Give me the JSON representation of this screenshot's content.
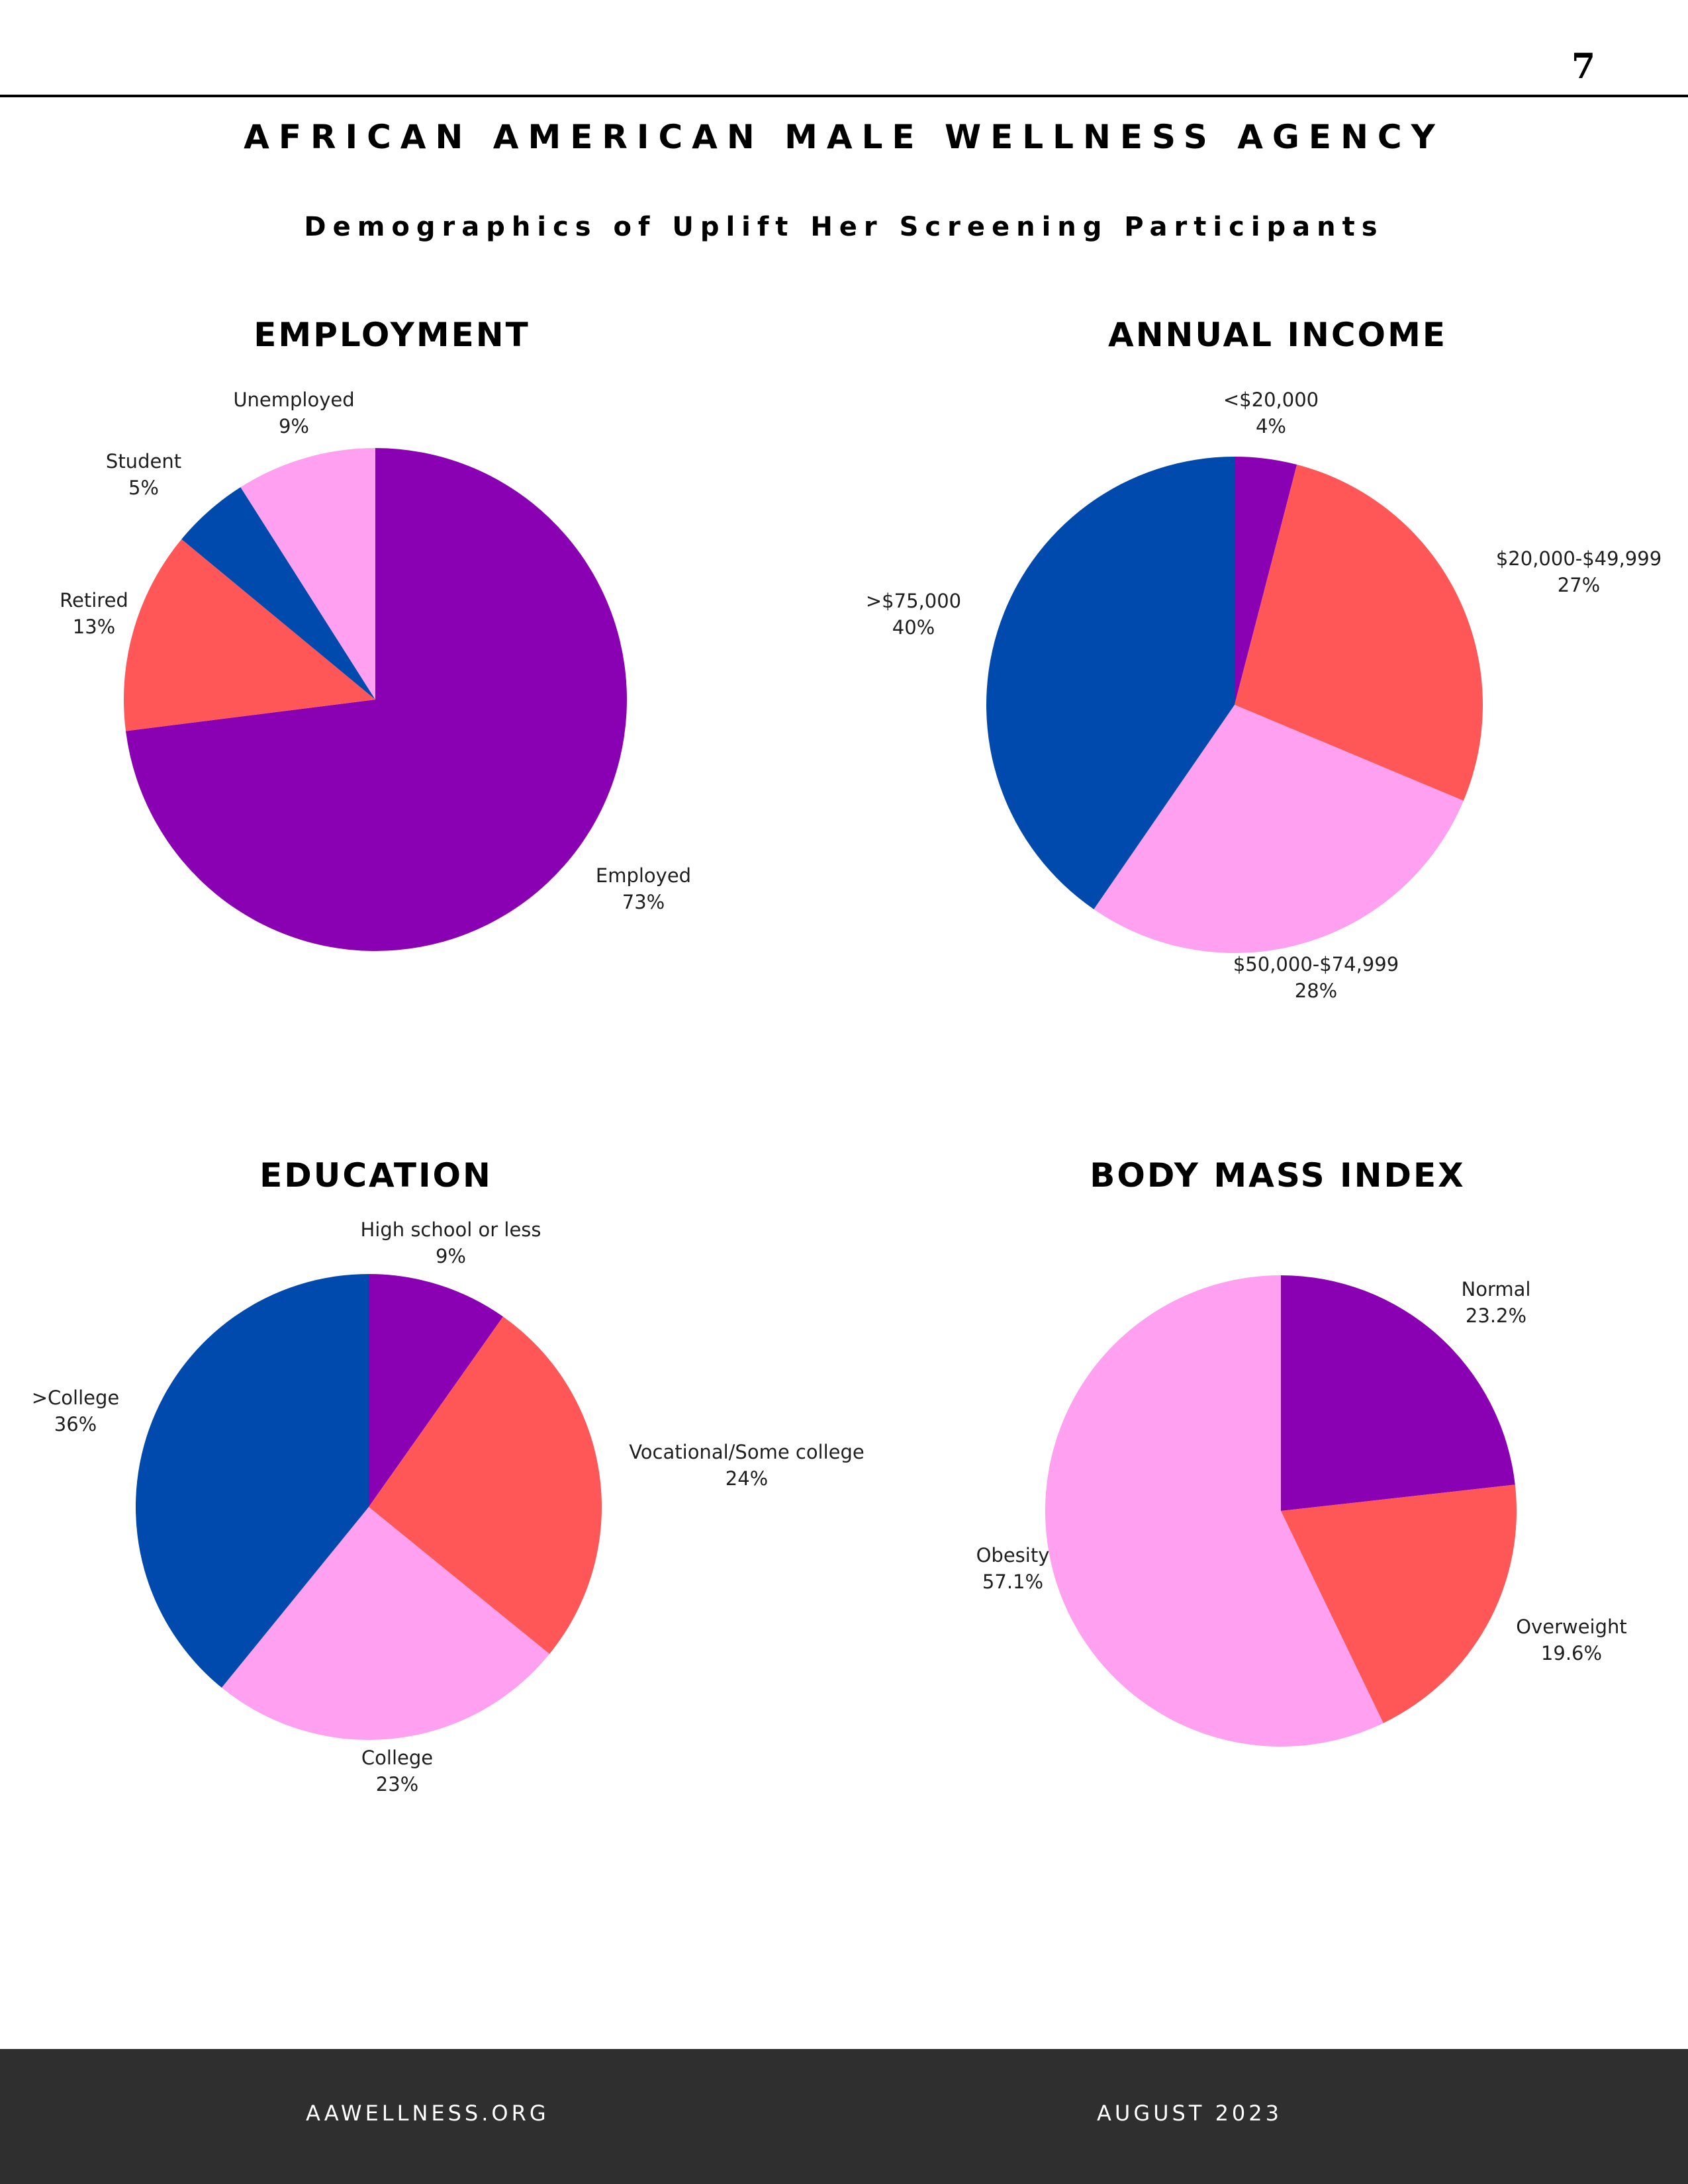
{
  "page": {
    "number": "7",
    "agency_title": "AFRICAN AMERICAN MALE WELLNESS AGENCY",
    "subtitle": "Demographics of Uplift Her Screening Participants"
  },
  "footer": {
    "website": "AAWELLNESS.ORG",
    "date": "AUGUST 2023"
  },
  "colors": {
    "purple": "#8a00b3",
    "coral": "#ff5757",
    "pink": "#ffa0f0",
    "blue": "#004aad"
  },
  "chart_data": [
    {
      "id": "employment",
      "type": "pie",
      "title": "EMPLOYMENT",
      "slices": [
        {
          "label": "Employed",
          "pct": "73%",
          "value": 73,
          "color": "#8a00b3"
        },
        {
          "label": "Retired",
          "pct": "13%",
          "value": 13,
          "color": "#ff5757"
        },
        {
          "label": "Student",
          "pct": "5%",
          "value": 5,
          "color": "#004aad"
        },
        {
          "label": "Unemployed",
          "pct": "9%",
          "value": 9,
          "color": "#ffa0f0"
        }
      ]
    },
    {
      "id": "annual-income",
      "type": "pie",
      "title": "ANNUAL INCOME",
      "slices": [
        {
          "label": "<$20,000",
          "pct": "4%",
          "value": 4,
          "color": "#8a00b3"
        },
        {
          "label": "$20,000-$49,999",
          "pct": "27%",
          "value": 27,
          "color": "#ff5757"
        },
        {
          "label": "$50,000-$74,999",
          "pct": "28%",
          "value": 28,
          "color": "#ffa0f0"
        },
        {
          "label": ">$75,000",
          "pct": "40%",
          "value": 40,
          "color": "#004aad"
        }
      ]
    },
    {
      "id": "education",
      "type": "pie",
      "title": "EDUCATION",
      "slices": [
        {
          "label": "High school or less",
          "pct": "9%",
          "value": 9,
          "color": "#8a00b3"
        },
        {
          "label": "Vocational/Some college",
          "pct": "24%",
          "value": 24,
          "color": "#ff5757"
        },
        {
          "label": "College",
          "pct": "23%",
          "value": 23,
          "color": "#ffa0f0"
        },
        {
          "label": ">College",
          "pct": "36%",
          "value": 36,
          "color": "#004aad"
        }
      ]
    },
    {
      "id": "body-mass-index",
      "type": "pie",
      "title": "BODY MASS INDEX",
      "slices": [
        {
          "label": "Normal",
          "pct": "23.2%",
          "value": 23.2,
          "color": "#8a00b3"
        },
        {
          "label": "Overweight",
          "pct": "19.6%",
          "value": 19.6,
          "color": "#ff5757"
        },
        {
          "label": "Obesity",
          "pct": "57.1%",
          "value": 57.1,
          "color": "#ffa0f0"
        }
      ]
    }
  ]
}
